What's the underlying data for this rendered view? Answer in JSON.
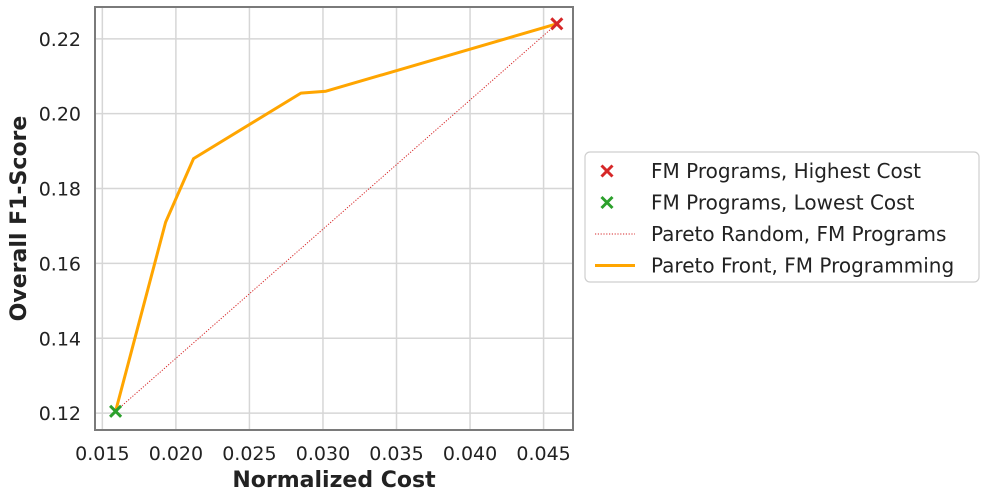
{
  "chart_data": {
    "type": "line",
    "title": "",
    "xlabel": "Normalized Cost",
    "ylabel": "Overall F1-Score",
    "xlim": [
      0.0145,
      0.047
    ],
    "ylim": [
      0.1155,
      0.2285
    ],
    "xticks": [
      0.015,
      0.02,
      0.025,
      0.03,
      0.035,
      0.04,
      0.045
    ],
    "xtick_labels": [
      "0.015",
      "0.020",
      "0.025",
      "0.030",
      "0.035",
      "0.040",
      "0.045"
    ],
    "yticks": [
      0.12,
      0.14,
      0.16,
      0.18,
      0.2,
      0.22
    ],
    "ytick_labels": [
      "0.12",
      "0.14",
      "0.16",
      "0.18",
      "0.20",
      "0.22"
    ],
    "grid": true,
    "legend_position": "outside-right",
    "series": [
      {
        "name": "FM Programs, Highest Cost",
        "kind": "scatter",
        "marker": "x",
        "color": "#d62728",
        "points": [
          [
            0.0459,
            0.224
          ]
        ]
      },
      {
        "name": "FM Programs, Lowest Cost",
        "kind": "scatter",
        "marker": "x",
        "color": "#2ca02c",
        "points": [
          [
            0.0159,
            0.1205
          ]
        ]
      },
      {
        "name": "Pareto Random, FM Programs",
        "kind": "line",
        "style": "dotted",
        "color": "#d62728",
        "points": [
          [
            0.0159,
            0.1205
          ],
          [
            0.0459,
            0.224
          ]
        ]
      },
      {
        "name": "Pareto Front, FM Programming",
        "kind": "line",
        "style": "solid",
        "color": "#ffa500",
        "points": [
          [
            0.0159,
            0.1205
          ],
          [
            0.0193,
            0.171
          ],
          [
            0.0212,
            0.188
          ],
          [
            0.0285,
            0.2055
          ],
          [
            0.0302,
            0.206
          ],
          [
            0.0459,
            0.224
          ]
        ]
      }
    ]
  }
}
